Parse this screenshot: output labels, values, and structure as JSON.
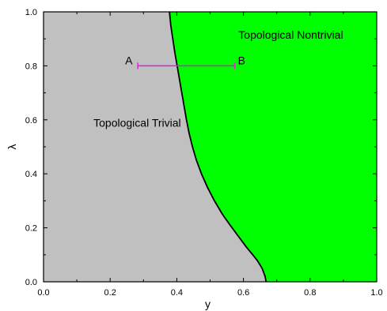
{
  "chart_data": {
    "type": "area",
    "title": "",
    "xlabel": "y",
    "ylabel": "λ",
    "xlim": [
      0.0,
      1.0
    ],
    "ylim": [
      0.0,
      1.0
    ],
    "x_ticks": [
      "0.0",
      "0.2",
      "0.4",
      "0.6",
      "0.8",
      "1.0"
    ],
    "y_ticks": [
      "0.0",
      "0.2",
      "0.4",
      "0.6",
      "0.8",
      "1.0"
    ],
    "grid": false,
    "regions": [
      {
        "label": "Topological Trivial",
        "color": "#c0c0c0",
        "side": "left"
      },
      {
        "label": "Topological Nontrivial",
        "color": "#00ff00",
        "side": "right"
      }
    ],
    "boundary": {
      "color": "#000000",
      "points": [
        {
          "x": 0.668,
          "y": 0.0
        },
        {
          "x": 0.665,
          "y": 0.02
        },
        {
          "x": 0.656,
          "y": 0.05
        },
        {
          "x": 0.641,
          "y": 0.08
        },
        {
          "x": 0.628,
          "y": 0.1
        },
        {
          "x": 0.608,
          "y": 0.13
        },
        {
          "x": 0.584,
          "y": 0.17
        },
        {
          "x": 0.56,
          "y": 0.21
        },
        {
          "x": 0.537,
          "y": 0.25
        },
        {
          "x": 0.513,
          "y": 0.3
        },
        {
          "x": 0.492,
          "y": 0.35
        },
        {
          "x": 0.474,
          "y": 0.4
        },
        {
          "x": 0.459,
          "y": 0.45
        },
        {
          "x": 0.447,
          "y": 0.5
        },
        {
          "x": 0.437,
          "y": 0.55
        },
        {
          "x": 0.429,
          "y": 0.6
        },
        {
          "x": 0.422,
          "y": 0.65
        },
        {
          "x": 0.415,
          "y": 0.7
        },
        {
          "x": 0.408,
          "y": 0.75
        },
        {
          "x": 0.401,
          "y": 0.8
        },
        {
          "x": 0.394,
          "y": 0.85
        },
        {
          "x": 0.388,
          "y": 0.9
        },
        {
          "x": 0.382,
          "y": 0.95
        },
        {
          "x": 0.378,
          "y": 1.0
        }
      ]
    },
    "segment": {
      "color": "#e01ee0",
      "start": {
        "label": "A",
        "x": 0.283,
        "y": 0.8
      },
      "end": {
        "label": "B",
        "x": 0.574,
        "y": 0.8
      }
    }
  }
}
